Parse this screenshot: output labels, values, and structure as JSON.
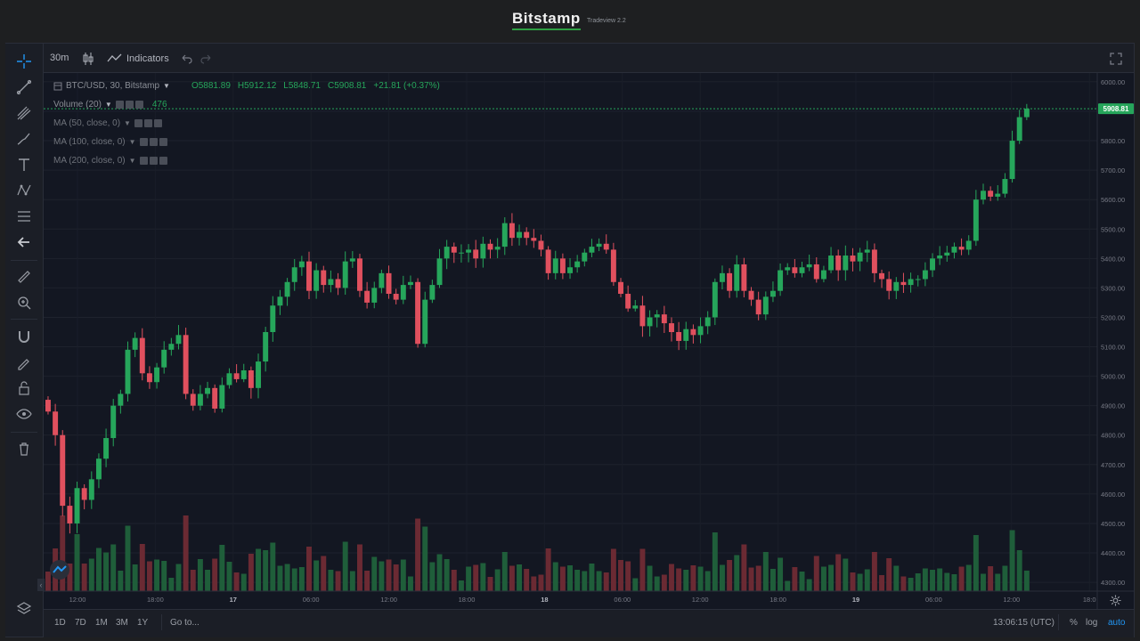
{
  "header": {
    "brand": "Bitstamp",
    "version": "Tradeview 2.2"
  },
  "toolbar_top": {
    "interval": "30m",
    "indicators_label": "Indicators"
  },
  "legend": {
    "symbol": "BTC/USD, 30, Bitstamp",
    "open": "O5881.89",
    "high": "H5912.12",
    "low": "L5848.71",
    "close": "C5908.81",
    "change": "+21.81 (+0.37%)",
    "volume_label": "Volume (20)",
    "volume_value": "476",
    "ma50": "MA (50, close, 0)",
    "ma100": "MA (100, close, 0)",
    "ma200": "MA (200, close, 0)"
  },
  "bottom_bar": {
    "ranges": [
      "1D",
      "7D",
      "1M",
      "3M",
      "1Y"
    ],
    "goto": "Go to...",
    "time": "13:06:15 (UTC)",
    "percent": "%",
    "log": "log",
    "auto": "auto"
  },
  "colors": {
    "up": "#26a65b",
    "down": "#e0505e",
    "background": "#131722",
    "accent": "#2196f3"
  },
  "chart_data": {
    "type": "candlestick",
    "title": "BTC/USD, 30, Bitstamp",
    "y_ticks": [
      4300,
      4400,
      4500,
      4600,
      4700,
      4800,
      4900,
      5000,
      5100,
      5200,
      5300,
      5400,
      5500,
      5600,
      5700,
      5800,
      5900,
      6000
    ],
    "y_tick_labels": [
      "4300.00",
      "4400.00",
      "4500.00",
      "4600.00",
      "4700.00",
      "4800.00",
      "4900.00",
      "5000.00",
      "5100.00",
      "5200.00",
      "5300.00",
      "5400.00",
      "5500.00",
      "5600.00",
      "5700.00",
      "5800.00",
      "5900.00",
      "6000.00"
    ],
    "ylim": [
      4270,
      6030
    ],
    "x_ticks": [
      "12:00",
      "18:00",
      "17",
      "06:00",
      "12:00",
      "18:00",
      "18",
      "06:00",
      "12:00",
      "18:00",
      "19",
      "06:00",
      "12:00",
      "18:0"
    ],
    "last_price": 5908.81,
    "last_price_label": "5908.81",
    "closes": [
      4880,
      4800,
      4560,
      4500,
      4620,
      4580,
      4650,
      4720,
      4790,
      4900,
      4940,
      5090,
      5130,
      5010,
      4980,
      5030,
      5090,
      5110,
      5140,
      4940,
      4900,
      4940,
      4960,
      4890,
      4970,
      5010,
      4990,
      5020,
      4960,
      5050,
      5150,
      5240,
      5270,
      5320,
      5370,
      5390,
      5290,
      5360,
      5310,
      5330,
      5300,
      5390,
      5400,
      5290,
      5250,
      5300,
      5350,
      5280,
      5260,
      5310,
      5320,
      5110,
      5260,
      5310,
      5400,
      5440,
      5420,
      5420,
      5430,
      5400,
      5450,
      5430,
      5440,
      5520,
      5470,
      5490,
      5470,
      5460,
      5430,
      5350,
      5400,
      5350,
      5370,
      5390,
      5420,
      5440,
      5450,
      5430,
      5320,
      5280,
      5230,
      5240,
      5170,
      5200,
      5210,
      5180,
      5150,
      5120,
      5160,
      5140,
      5170,
      5200,
      5320,
      5350,
      5290,
      5380,
      5290,
      5260,
      5210,
      5270,
      5290,
      5360,
      5370,
      5350,
      5370,
      5380,
      5330,
      5360,
      5410,
      5360,
      5410,
      5390,
      5420,
      5430,
      5350,
      5330,
      5290,
      5320,
      5310,
      5330,
      5330,
      5360,
      5400,
      5410,
      5420,
      5440,
      5430,
      5460,
      5600,
      5630,
      5610,
      5620,
      5670,
      5800,
      5880,
      5908.81
    ]
  }
}
